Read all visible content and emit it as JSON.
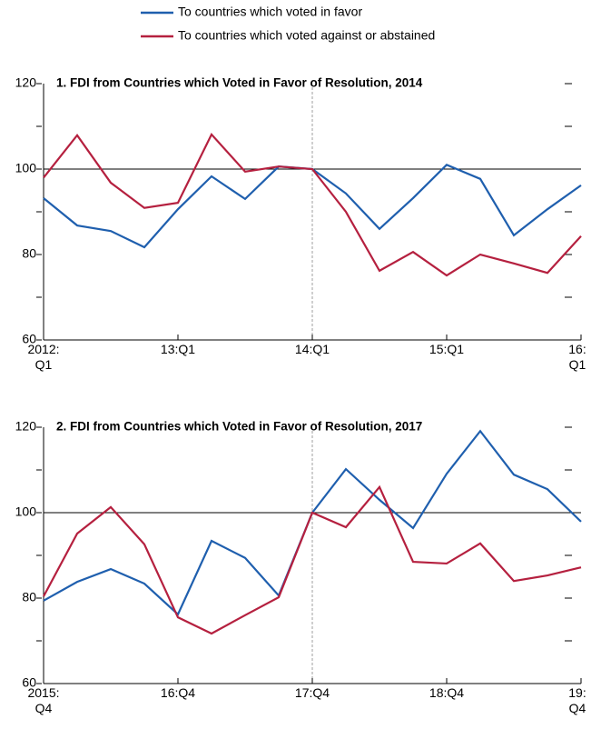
{
  "chart_data": [
    {
      "type": "line",
      "title": "1. FDI from Countries which Voted in Favor of Resolution, 2014",
      "categories": [
        "2012:\nQ1",
        null,
        null,
        null,
        "13:Q1",
        null,
        null,
        null,
        "14:Q1",
        null,
        null,
        null,
        "15:Q1",
        null,
        null,
        null,
        "16:\nQ1"
      ],
      "series": [
        {
          "name": "To countries which voted in favor",
          "color": "#1f5fae",
          "values": [
            93.2,
            86.8,
            85.5,
            81.7,
            90.6,
            98.3,
            93,
            100.6,
            100,
            94.3,
            86,
            93.2,
            101,
            97.7,
            84.5,
            90.6,
            96.2
          ]
        },
        {
          "name": "To countries which voted against or abstained",
          "color": "#b5203f",
          "values": [
            98,
            107.9,
            96.8,
            90.9,
            92.1,
            108.1,
            99.4,
            100.6,
            100,
            90,
            76.2,
            80.6,
            75.1,
            80,
            77.9,
            75.7,
            84.3
          ]
        }
      ],
      "ylim": [
        60,
        120
      ],
      "yticks": [
        60,
        80,
        100,
        120
      ],
      "minor_yticks": [
        70,
        90,
        110
      ],
      "hline": 100,
      "vline_index": 8
    },
    {
      "type": "line",
      "title": "2. FDI from Countries which Voted in Favor of Resolution, 2017",
      "categories": [
        "2015:\nQ4",
        null,
        null,
        null,
        "16:Q4",
        null,
        null,
        null,
        "17:Q4",
        null,
        null,
        null,
        "18:Q4",
        null,
        null,
        null,
        "19:\nQ4"
      ],
      "series": [
        {
          "color": "#1f5fae",
          "values": [
            79.4,
            83.8,
            86.8,
            83.4,
            76.2,
            93.4,
            89.4,
            80.6,
            100,
            110.2,
            103,
            96.4,
            109.1,
            119.1,
            108.9,
            105.5,
            97.9
          ]
        },
        {
          "color": "#b5203f",
          "values": [
            80.4,
            95.1,
            101.3,
            92.6,
            75.5,
            71.7,
            76,
            80.2,
            100,
            96.6,
            106,
            88.5,
            88.1,
            92.8,
            84,
            85.3,
            87.2
          ]
        }
      ],
      "ylim": [
        60,
        120
      ],
      "yticks": [
        60,
        80,
        100,
        120
      ],
      "minor_yticks": [
        70,
        90,
        110
      ],
      "hline": 100,
      "vline_index": 8
    }
  ]
}
